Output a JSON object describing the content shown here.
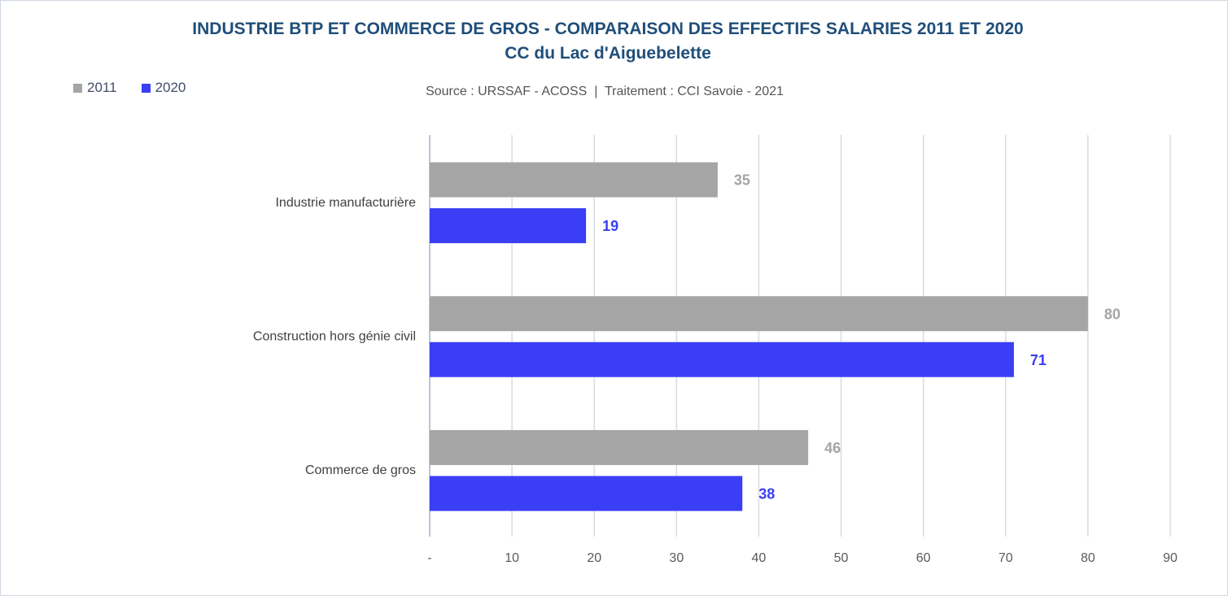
{
  "chart_data": {
    "type": "bar",
    "orientation": "horizontal",
    "title": "INDUSTRIE BTP ET COMMERCE DE GROS - COMPARAISON DES EFFECTIFS SALARIES 2011 ET 2020",
    "subtitle": "CC du Lac d'Aiguebelette",
    "source": "Source : URSSAF - ACOSS  |  Traitement : CCI Savoie - 2021",
    "categories": [
      "Industrie manufacturière",
      "Construction hors génie civil",
      "Commerce de gros"
    ],
    "series": [
      {
        "name": "2011",
        "values": [
          35,
          80,
          46
        ],
        "color": "#a5a5a5"
      },
      {
        "name": "2020",
        "values": [
          19,
          71,
          38
        ],
        "color": "#3a3ef5"
      }
    ],
    "xlim": [
      0,
      90
    ],
    "ticks": [
      0,
      10,
      20,
      30,
      40,
      50,
      60,
      70,
      80,
      90
    ],
    "tick_labels": [
      "-",
      "10",
      "20",
      "30",
      "40",
      "50",
      "60",
      "70",
      "80",
      "90"
    ],
    "grid": true,
    "legend_position": "top-left",
    "xlabel": "",
    "ylabel": ""
  },
  "colors": {
    "title": "#1f4e79",
    "grid": "#d6dce5",
    "axis": "#a6b4c8",
    "label_2011": "#a5a5a5",
    "label_2020": "#3a3ef5"
  }
}
